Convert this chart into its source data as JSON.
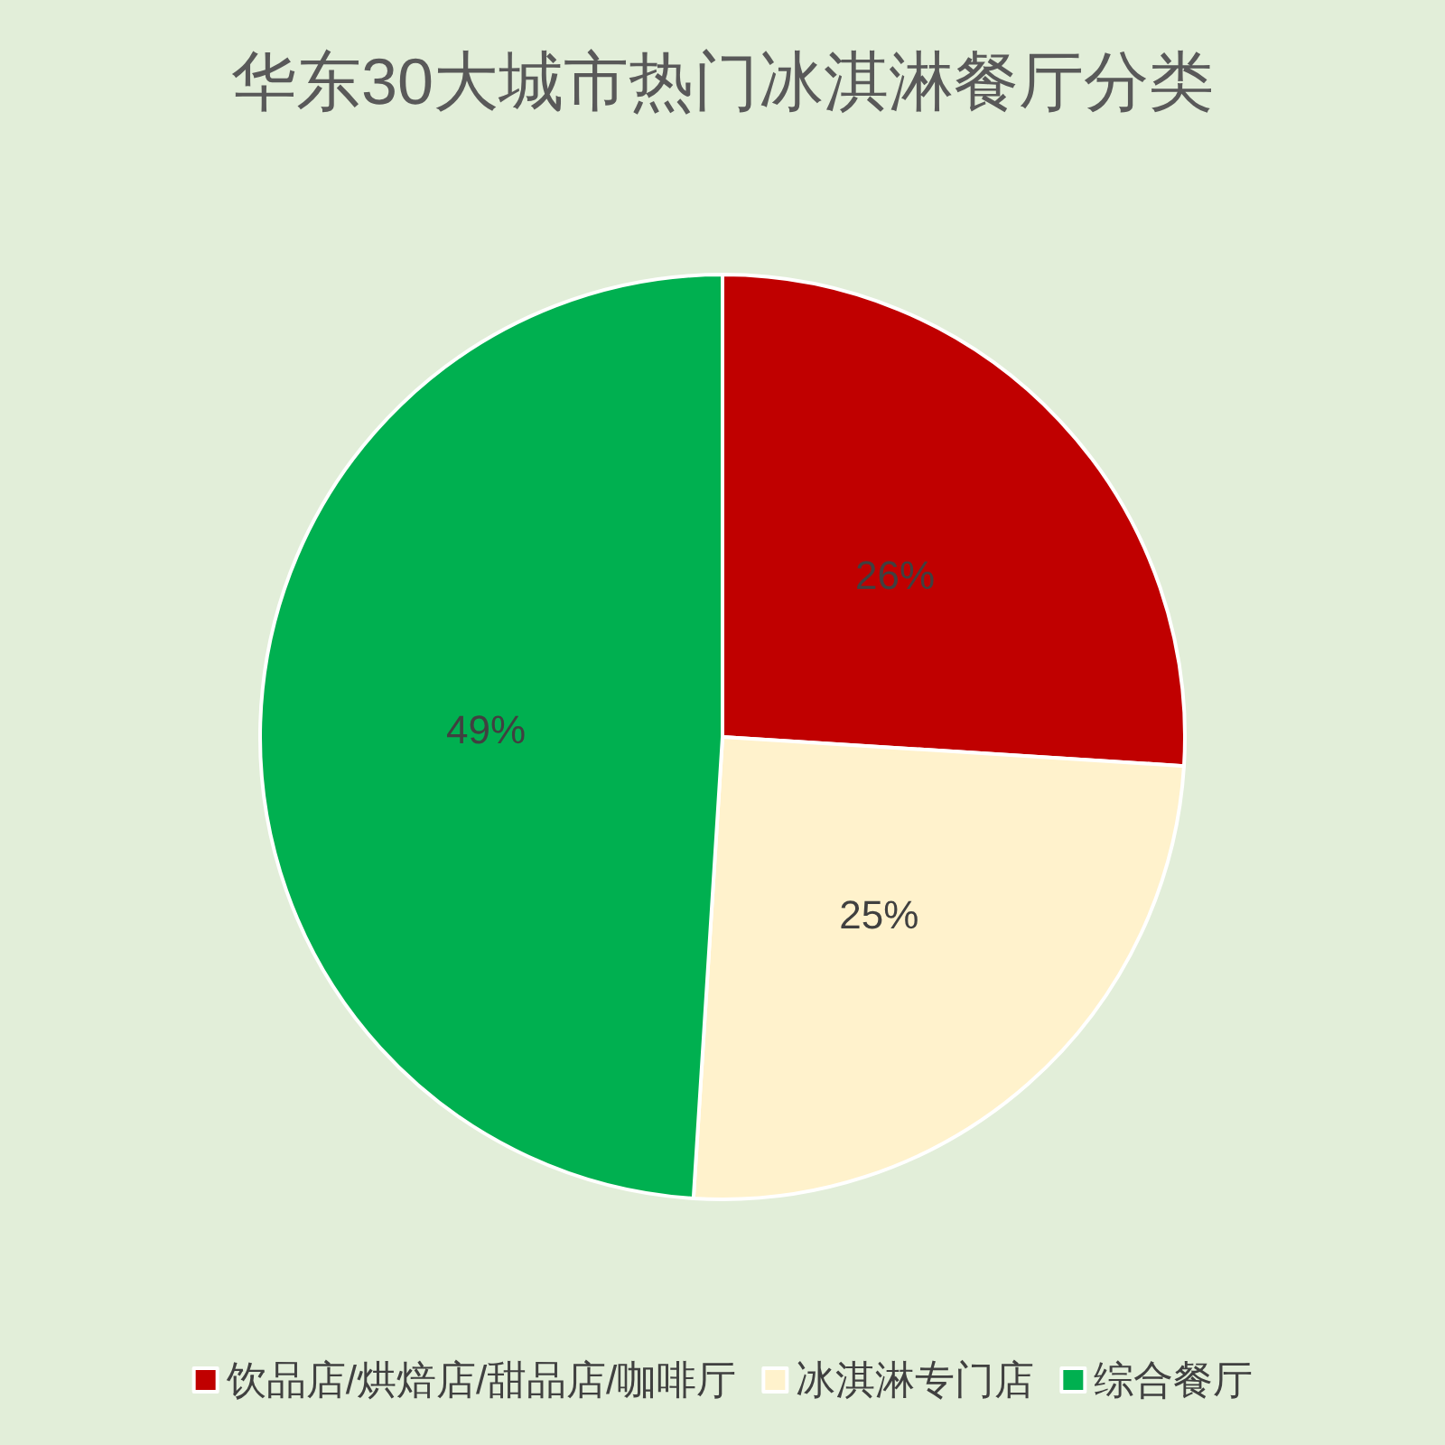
{
  "chart_data": {
    "type": "pie",
    "title": "华东30大城市热门冰淇淋餐厅分类",
    "categories": [
      "饮品店/烘焙店/甜品店/咖啡厅",
      "冰淇淋专门店",
      "综合餐厅"
    ],
    "values": [
      26,
      25,
      49
    ],
    "colors": [
      "#c00000",
      "#fff2cc",
      "#00b050"
    ],
    "value_labels": [
      "26%",
      "25%",
      "49%"
    ],
    "legend": "bottom"
  }
}
